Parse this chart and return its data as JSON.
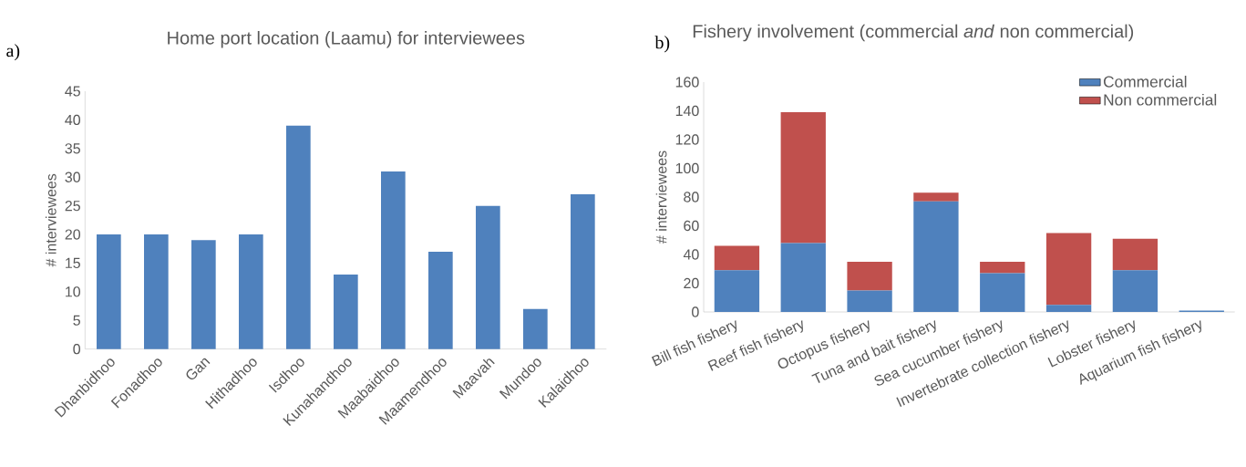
{
  "chart_data": [
    {
      "type": "bar",
      "title": "Home port location  (Laamu) for interviewees",
      "ylabel": "# interviewees",
      "categories": [
        "Dhanbidhoo",
        "Fonadhoo",
        "Gan",
        "Hithadhoo",
        "Isdhoo",
        "Kunahandhoo",
        "Maabaidhoo",
        "Maamendhoo",
        "Maavah",
        "Mundoo",
        "Kalaidhoo"
      ],
      "values": [
        20,
        20,
        19,
        20,
        39,
        13,
        31,
        17,
        25,
        7,
        27
      ],
      "color": "#4f81bd",
      "ylim": [
        0,
        45
      ],
      "yticks": [
        0,
        5,
        10,
        15,
        20,
        25,
        30,
        35,
        40,
        45
      ],
      "annotations": [
        "a)"
      ]
    },
    {
      "type": "bar",
      "stacked": true,
      "title": "Fishery involvement (commercial *and* non commercial)",
      "ylabel": "# interviewees",
      "categories": [
        "Bill fish fishery",
        "Reef fish fishery",
        "Octopus fishery",
        "Tuna and bait fishery",
        "Sea cucumber  fishery",
        "Invertebrate collection fishery",
        "Lobster fishery",
        "Aquarium fish fishery"
      ],
      "series": [
        {
          "name": "Commercial",
          "color": "#4f81bd",
          "values": [
            29,
            48,
            15,
            77,
            27,
            5,
            29,
            1
          ]
        },
        {
          "name": "Non commercial",
          "color": "#c0504d",
          "values": [
            17,
            91,
            20,
            6,
            8,
            50,
            22,
            0
          ]
        }
      ],
      "ylim": [
        0,
        160
      ],
      "yticks": [
        0,
        20,
        40,
        60,
        80,
        100,
        120,
        140,
        160
      ],
      "legend": "top right",
      "annotations": [
        "b)"
      ]
    }
  ]
}
